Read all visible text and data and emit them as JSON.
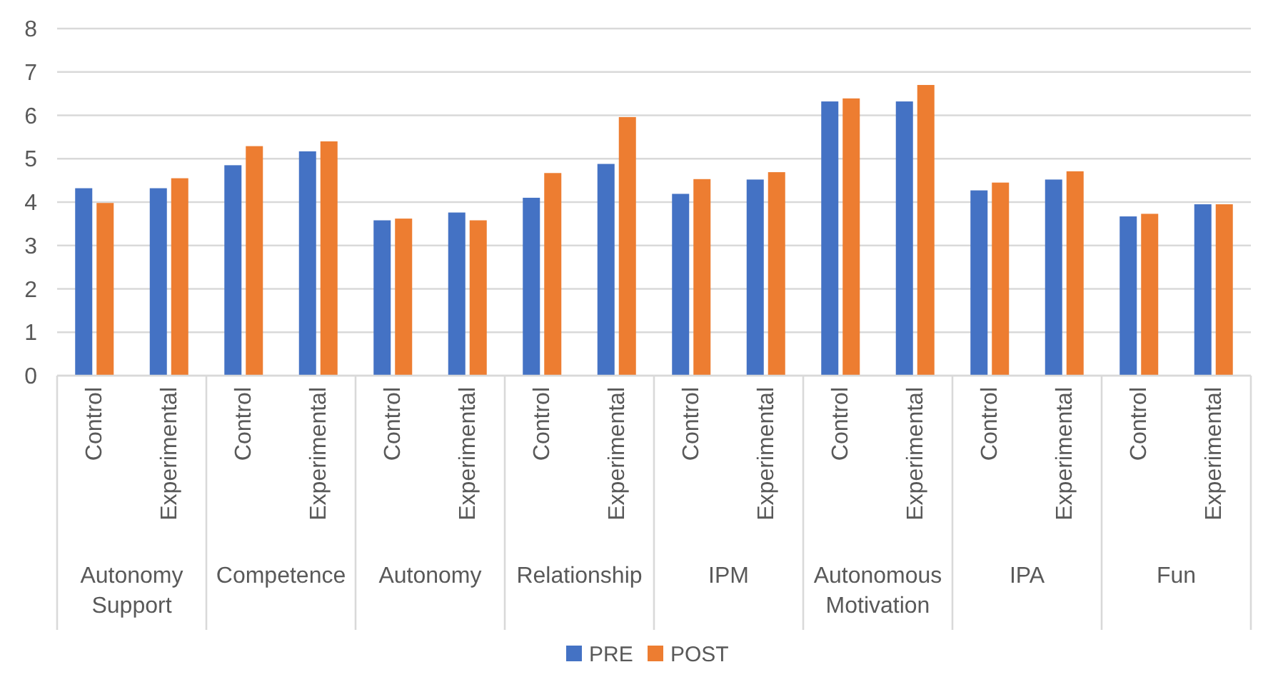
{
  "chart_data": {
    "type": "bar",
    "categories": [
      "Control",
      "Experimental",
      "Control",
      "Experimental",
      "Control",
      "Experimental",
      "Control",
      "Experimental",
      "Control",
      "Experimental",
      "Control",
      "Experimental",
      "Control",
      "Experimental",
      "Control",
      "Experimental"
    ],
    "annotations": [
      "Autonomy Support",
      "Competence",
      "Autonomy",
      "Relationship",
      "IPM",
      "Autonomous Motivation",
      "IPA",
      "Fun"
    ],
    "series": [
      {
        "name": "PRE",
        "color": "#4472c4",
        "values": [
          4.32,
          4.32,
          4.85,
          5.17,
          3.58,
          3.76,
          4.1,
          4.88,
          4.19,
          4.52,
          6.32,
          6.32,
          4.27,
          4.52,
          3.67,
          3.95
        ]
      },
      {
        "name": "POST",
        "color": "#ed7d31",
        "values": [
          3.98,
          4.55,
          5.29,
          5.4,
          3.62,
          3.58,
          4.67,
          5.96,
          4.53,
          4.69,
          6.39,
          6.7,
          4.45,
          4.71,
          3.73,
          3.95
        ]
      }
    ],
    "ylim": [
      0,
      8
    ],
    "yticks": [
      0,
      1,
      2,
      3,
      4,
      5,
      6,
      7,
      8
    ],
    "grid": true,
    "legend": "bottom"
  }
}
